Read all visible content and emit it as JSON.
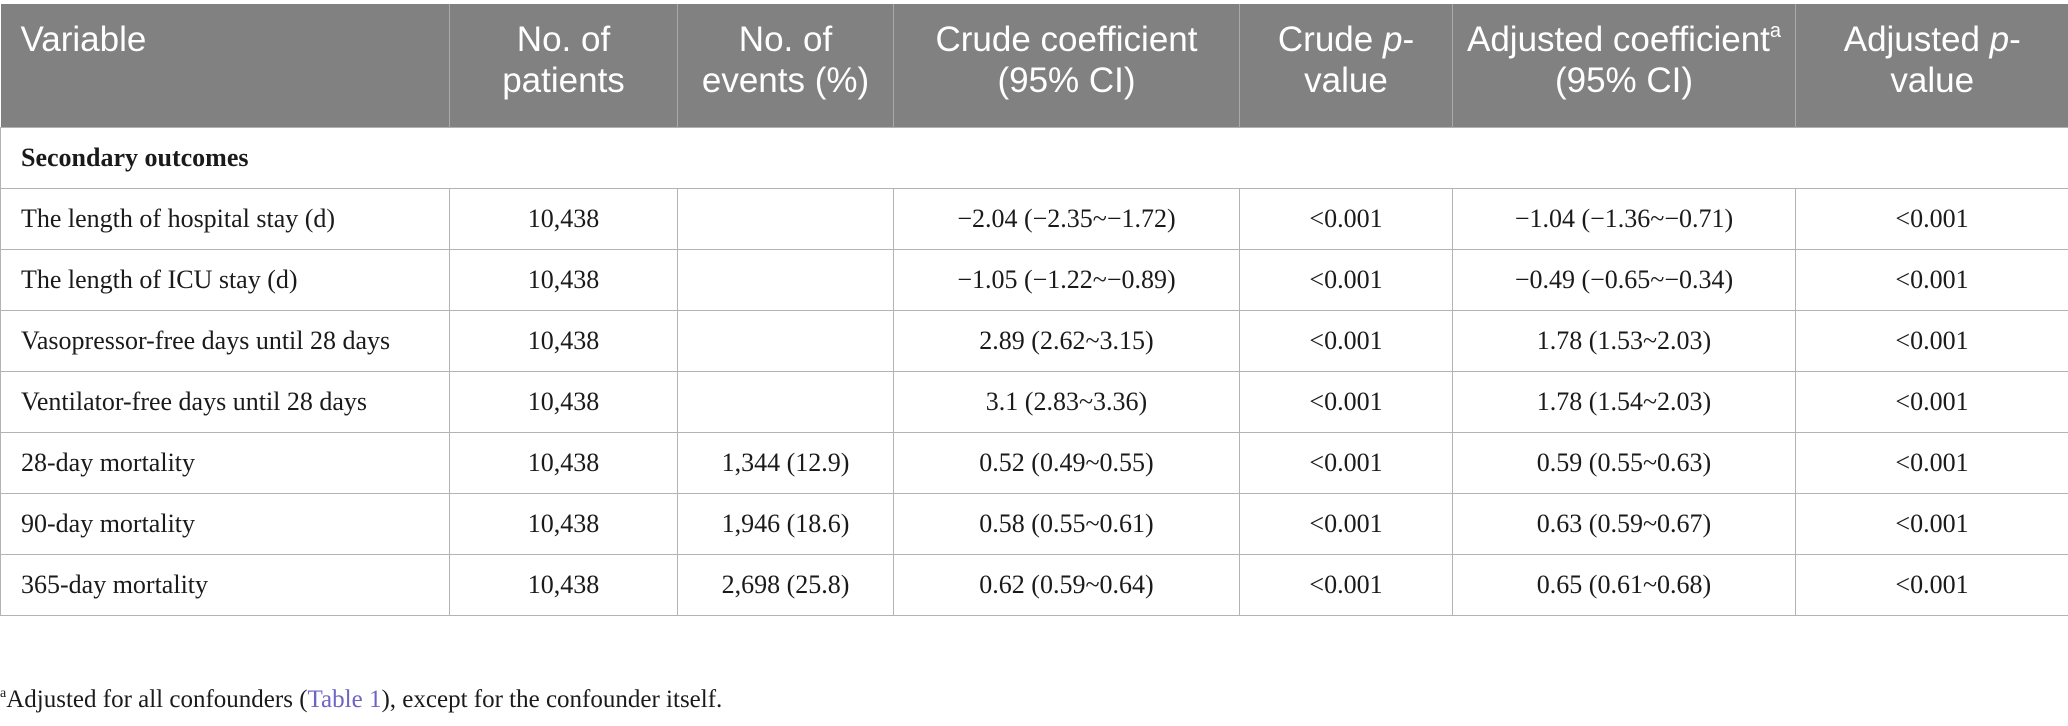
{
  "table": {
    "headers": {
      "variable": "Variable",
      "patients": "No. of patients",
      "events": "No. of events (%)",
      "crude_coef": "Crude coefficient (95% CI)",
      "crude_p_prefix": "Crude ",
      "crude_p_italic": "p",
      "crude_p_suffix": "-value",
      "adj_coef_prefix": "Adjusted coefficient",
      "adj_coef_sup": "a",
      "adj_coef_suffix": " (95% CI)",
      "adj_p_prefix": "Adjusted ",
      "adj_p_italic": "p",
      "adj_p_suffix": "-value"
    },
    "section_label": "Secondary outcomes",
    "rows": [
      {
        "variable": "The length of hospital stay (d)",
        "patients": "10,438",
        "events": "",
        "crude_coef": "−2.04 (−2.35~−1.72)",
        "crude_p": "<0.001",
        "adj_coef": "−1.04 (−1.36~−0.71)",
        "adj_p": "<0.001"
      },
      {
        "variable": "The length of ICU stay (d)",
        "patients": "10,438",
        "events": "",
        "crude_coef": "−1.05 (−1.22~−0.89)",
        "crude_p": "<0.001",
        "adj_coef": "−0.49 (−0.65~−0.34)",
        "adj_p": "<0.001"
      },
      {
        "variable": "Vasopressor-free days until 28 days",
        "patients": "10,438",
        "events": "",
        "crude_coef": "2.89 (2.62~3.15)",
        "crude_p": "<0.001",
        "adj_coef": "1.78 (1.53~2.03)",
        "adj_p": "<0.001"
      },
      {
        "variable": "Ventilator-free days until 28 days",
        "patients": "10,438",
        "events": "",
        "crude_coef": "3.1 (2.83~3.36)",
        "crude_p": "<0.001",
        "adj_coef": "1.78 (1.54~2.03)",
        "adj_p": "<0.001"
      },
      {
        "variable": "28-day mortality",
        "patients": "10,438",
        "events": "1,344 (12.9)",
        "crude_coef": "0.52 (0.49~0.55)",
        "crude_p": "<0.001",
        "adj_coef": "0.59 (0.55~0.63)",
        "adj_p": "<0.001"
      },
      {
        "variable": "90-day mortality",
        "patients": "10,438",
        "events": "1,946 (18.6)",
        "crude_coef": "0.58 (0.55~0.61)",
        "crude_p": "<0.001",
        "adj_coef": "0.63 (0.59~0.67)",
        "adj_p": "<0.001"
      },
      {
        "variable": "365-day mortality",
        "patients": "10,438",
        "events": "2,698 (25.8)",
        "crude_coef": "0.62 (0.59~0.64)",
        "crude_p": "<0.001",
        "adj_coef": "0.65 (0.61~0.68)",
        "adj_p": "<0.001"
      }
    ]
  },
  "footnote": {
    "marker": "a",
    "text_before": "Adjusted for all confounders (",
    "link_text": "Table 1",
    "text_after": "), except for the confounder itself."
  }
}
